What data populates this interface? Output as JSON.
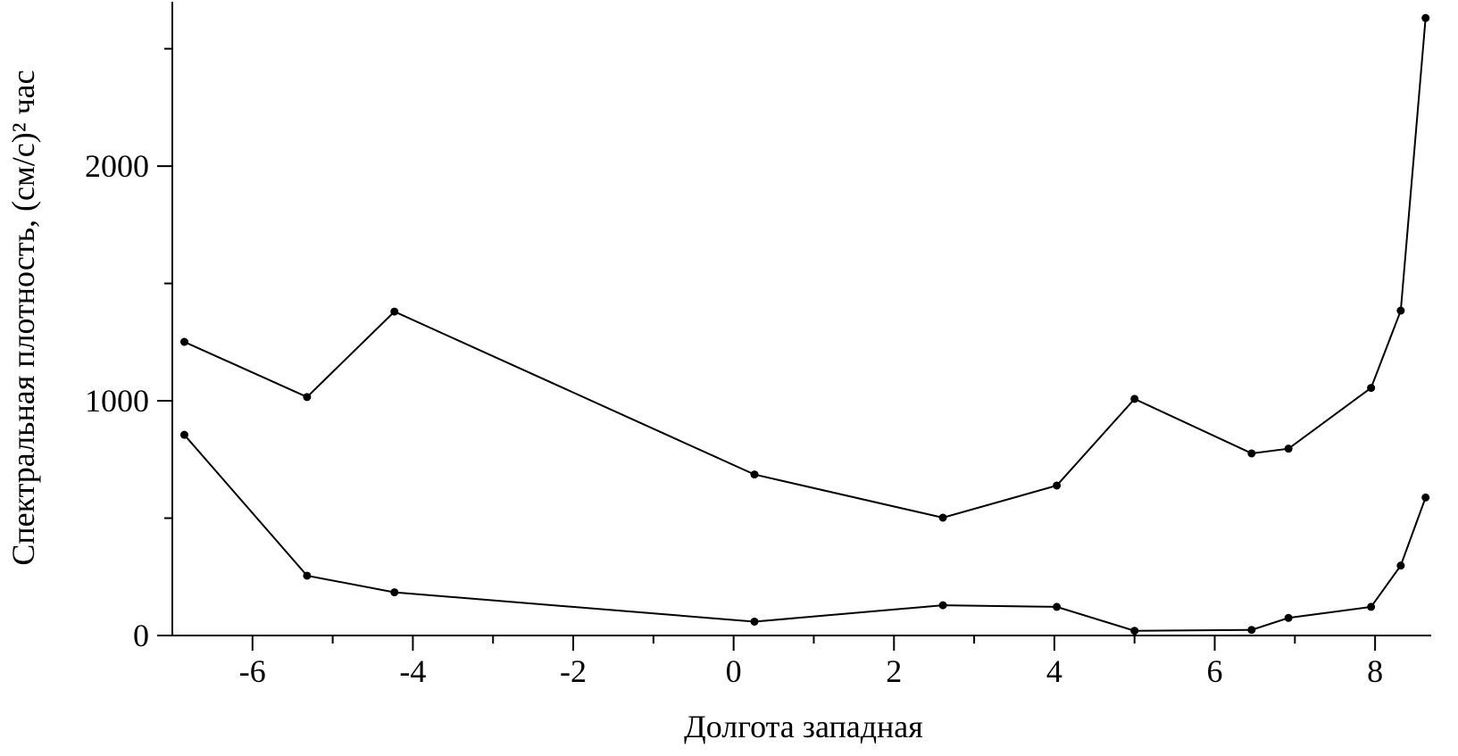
{
  "chart_data": {
    "type": "line",
    "xlabel": "Долгота западная",
    "ylabel": "Спектральная плотность, (см/с)² час",
    "x": [
      -6.85,
      -5.32,
      -4.23,
      0.26,
      2.61,
      4.03,
      5.0,
      6.46,
      6.92,
      7.95,
      8.32,
      8.63
    ],
    "series": [
      {
        "color": "#000000",
        "values": [
          1251,
          1016,
          1380,
          686,
          502,
          639,
          1008,
          776,
          796,
          1055,
          1384,
          2631
        ]
      },
      {
        "color": "#000000",
        "values": [
          855,
          255,
          184,
          59,
          129,
          122,
          20,
          24,
          75,
          122,
          298,
          588
        ]
      }
    ],
    "xlim": [
      -7,
      8.7
    ],
    "ylim": [
      0,
      2700
    ],
    "xticks": [
      -6,
      -4,
      -2,
      0,
      2,
      4,
      6,
      8
    ],
    "xminorticks": [
      -5,
      -3,
      -1,
      1,
      3,
      5,
      7
    ],
    "yticks": [
      0,
      1000,
      2000
    ],
    "yminorticks": [
      500,
      1500,
      2500
    ],
    "grid": false
  }
}
